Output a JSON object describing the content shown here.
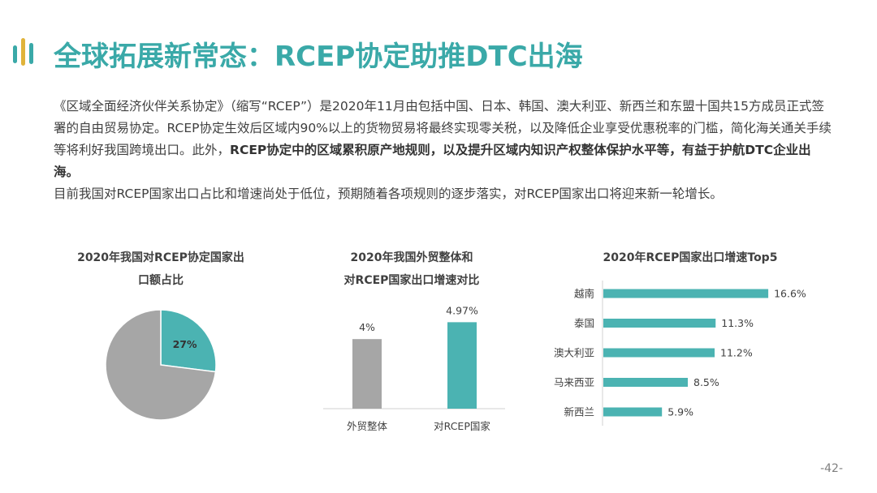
{
  "title": "全球拓展新常态：RCEP协定助推DTC出海",
  "intro": {
    "p1_a": "《区域全面经济伙伴关系协定》（缩写“RCEP”）是2020年11月由包括中国、日本、韩国、澳大利亚、新西兰和东盟十国共15方成员正式签署的自由贸易协定。RCEP协定生效后区域内90%以上的货物贸易将最终实现零关税，以及降低企业享受优惠税率的门槛，简化海关通关手续等将利好我国跨境出口。此外，",
    "p1_b": "RCEP协定中的区域累积原产地规则，以及提升区域内知识产权整体保护水平等，有益于护航DTC企业出海。",
    "p2": "目前我国对RCEP国家出口占比和增速尚处于低位，预期随着各项规则的逐步落实，对RCEP国家出口将迎来新一轮增长。"
  },
  "colors": {
    "accent": "#4bb3b2",
    "grey": "#a6a6a6",
    "title": "#3aa9a8"
  },
  "chart_data": [
    {
      "type": "pie",
      "title_line1": "2020年我国对RCEP协定国家出",
      "title_line2": "口额占比",
      "slices": [
        {
          "name": "",
          "value": 27,
          "label": "27%",
          "color": "#4bb3b2"
        },
        {
          "name": "",
          "value": 73,
          "label": "",
          "color": "#a6a6a6"
        }
      ]
    },
    {
      "type": "bar",
      "title_line1": "2020年我国外贸整体和",
      "title_line2": "对RCEP国家出口增速对比",
      "categories": [
        "外贸整体",
        "对RCEP国家"
      ],
      "values": [
        4,
        4.97
      ],
      "labels": [
        "4%",
        "4.97%"
      ],
      "colors": [
        "#a6a6a6",
        "#4bb3b2"
      ],
      "ylim": [
        0,
        5.5
      ]
    },
    {
      "type": "bar",
      "orientation": "horizontal",
      "title": "2020年RCEP国家出口增速Top5",
      "categories": [
        "越南",
        "泰国",
        "澳大利亚",
        "马来西亚",
        "新西兰"
      ],
      "values": [
        16.6,
        11.3,
        11.2,
        8.5,
        5.9
      ],
      "labels": [
        "16.6%",
        "11.3%",
        "11.2%",
        "8.5%",
        "5.9%"
      ],
      "color": "#4bb3b2",
      "xlim": [
        0,
        17
      ]
    }
  ],
  "page_number": "-42-"
}
